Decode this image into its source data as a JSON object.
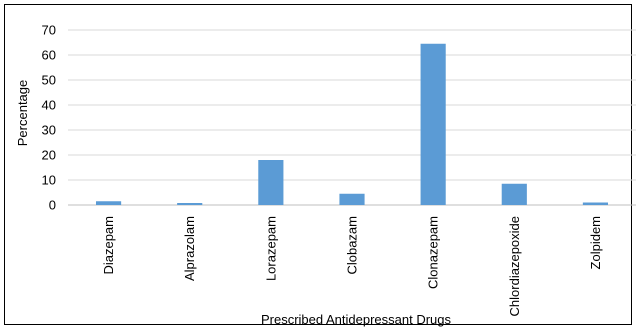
{
  "chart_data": {
    "type": "bar",
    "categories": [
      "Diazepam",
      "Alprazolam",
      "Lorazepam",
      "Clobazam",
      "Clonazepam",
      "Chlordiazepoxide",
      "Zolpidem"
    ],
    "values": [
      1.5,
      0.8,
      18,
      4.5,
      64.5,
      8.5,
      1.0
    ],
    "title": "",
    "xlabel": "Prescribed Antidepressant Drugs",
    "ylabel": "Percentage",
    "ylim": [
      0,
      70
    ],
    "yticks": [
      0,
      10,
      20,
      30,
      40,
      50,
      60,
      70
    ],
    "grid": true,
    "legend": "none",
    "colors": {
      "bar": "#5B9BD5",
      "grid": "#D9D9D9",
      "axis": "#BFBFBF"
    }
  }
}
